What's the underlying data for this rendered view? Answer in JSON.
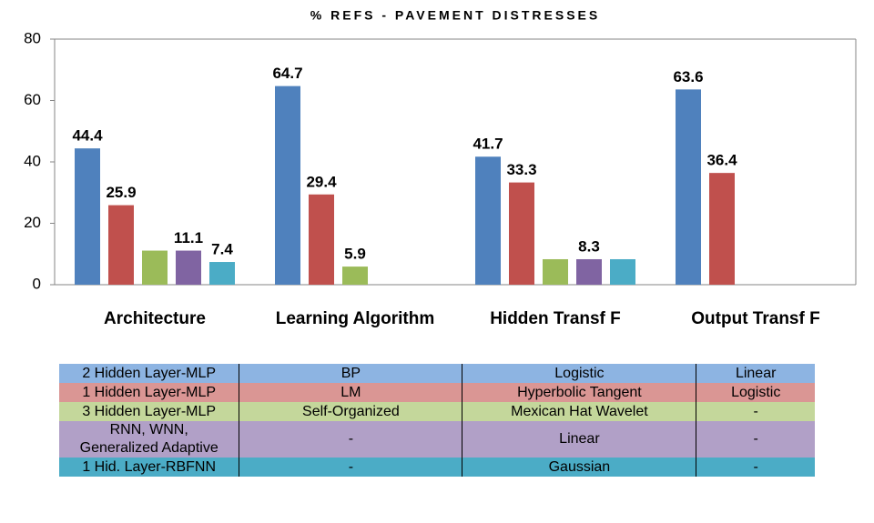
{
  "chart_data": {
    "type": "bar",
    "title": "% REFS - PAVEMENT DISTRESSES",
    "categories": [
      "Architecture",
      "Learning Algorithm",
      "Hidden Transf F",
      "Output Transf F"
    ],
    "series": [
      {
        "color": "#4f81bd",
        "values": [
          44.4,
          64.7,
          41.7,
          63.6
        ],
        "value_labels": [
          "44.4",
          "64.7",
          "41.7",
          "63.6"
        ]
      },
      {
        "color": "#c0504d",
        "values": [
          25.9,
          29.4,
          33.3,
          36.4
        ],
        "value_labels": [
          "25.9",
          "29.4",
          "33.3",
          "36.4"
        ]
      },
      {
        "color": "#9bbb59",
        "values": [
          11.1,
          5.9,
          8.3,
          null
        ],
        "value_labels": [
          null,
          "5.9",
          null,
          null
        ]
      },
      {
        "color": "#8064a2",
        "values": [
          11.1,
          null,
          8.3,
          null
        ],
        "value_labels": [
          "11.1",
          null,
          "8.3",
          null
        ]
      },
      {
        "color": "#4bacc6",
        "values": [
          7.4,
          null,
          8.3,
          null
        ],
        "value_labels": [
          "7.4",
          null,
          null,
          null
        ]
      }
    ],
    "ylim": [
      0,
      80
    ],
    "yticks": [
      0,
      20,
      40,
      60,
      80
    ]
  },
  "table": {
    "rows": [
      [
        "2 Hidden Layer-MLP",
        "BP",
        "Logistic",
        "Linear"
      ],
      [
        "1 Hidden Layer-MLP",
        "LM",
        "Hyperbolic Tangent",
        "Logistic"
      ],
      [
        "3 Hidden Layer-MLP",
        "Self-Organized",
        "Mexican Hat Wavelet",
        "-"
      ],
      [
        "RNN, WNN,\nGeneralized Adaptive",
        "-",
        "Linear",
        "-"
      ],
      [
        "1 Hid. Layer-RBFNN",
        "-",
        "Gaussian",
        "-"
      ]
    ]
  }
}
